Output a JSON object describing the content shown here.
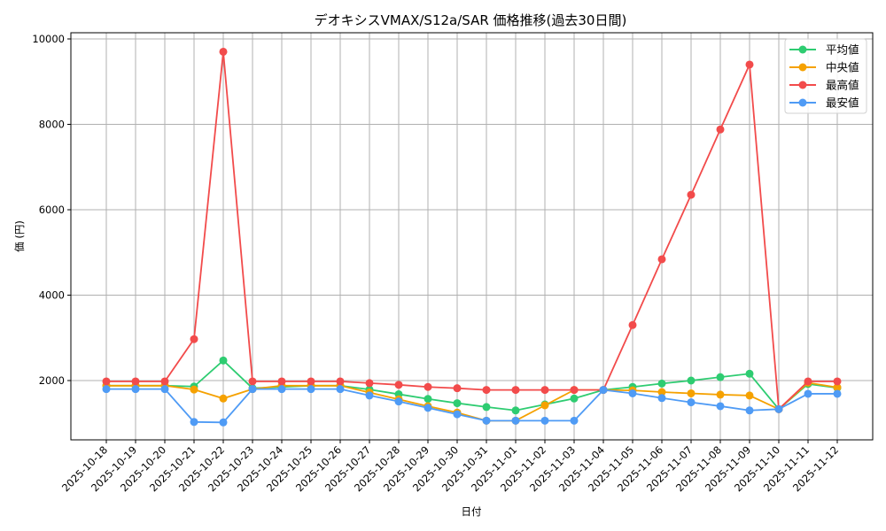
{
  "chart_data": {
    "type": "line",
    "title": "デオキシスVMAX/S12a/SAR 価格推移(過去30日間)",
    "xlabel": "日付",
    "ylabel": "価 (円)",
    "ylim": [
      610,
      10150
    ],
    "yticks": [
      2000,
      4000,
      6000,
      8000,
      10000
    ],
    "grid": true,
    "legend_position": "upper right",
    "categories": [
      "2025-10-18",
      "2025-10-19",
      "2025-10-20",
      "2025-10-21",
      "2025-10-22",
      "2025-10-23",
      "2025-10-24",
      "2025-10-25",
      "2025-10-26",
      "2025-10-27",
      "2025-10-28",
      "2025-10-29",
      "2025-10-30",
      "2025-10-31",
      "2025-11-01",
      "2025-11-02",
      "2025-11-03",
      "2025-11-04",
      "2025-11-05",
      "2025-11-06",
      "2025-11-07",
      "2025-11-08",
      "2025-11-09",
      "2025-11-10",
      "2025-11-11",
      "2025-11-12"
    ],
    "series": [
      {
        "name": "平均値",
        "color": "#2ecc71",
        "values": [
          1880,
          1880,
          1880,
          1860,
          2470,
          1820,
          1850,
          1880,
          1880,
          1790,
          1680,
          1570,
          1470,
          1380,
          1300,
          1440,
          1580,
          1780,
          1850,
          1930,
          2000,
          2080,
          2160,
          1330,
          1920,
          1830
        ]
      },
      {
        "name": "中央値",
        "color": "#f5a100",
        "values": [
          1880,
          1880,
          1880,
          1790,
          1580,
          1800,
          1880,
          1880,
          1880,
          1720,
          1560,
          1400,
          1250,
          1060,
          1060,
          1420,
          1780,
          1780,
          1770,
          1730,
          1700,
          1670,
          1650,
          1330,
          1950,
          1840
        ]
      },
      {
        "name": "最高値",
        "color": "#f24b4b",
        "values": [
          1980,
          1980,
          1980,
          2970,
          9700,
          1980,
          1980,
          1980,
          1980,
          1940,
          1900,
          1850,
          1820,
          1780,
          1780,
          1780,
          1780,
          1780,
          3300,
          4840,
          6350,
          7880,
          9400,
          1330,
          1980,
          1980
        ]
      },
      {
        "name": "最安値",
        "color": "#4f9bf5",
        "values": [
          1800,
          1800,
          1800,
          1030,
          1020,
          1800,
          1800,
          1800,
          1800,
          1650,
          1510,
          1360,
          1210,
          1060,
          1060,
          1060,
          1060,
          1780,
          1700,
          1590,
          1490,
          1400,
          1300,
          1330,
          1690,
          1690
        ]
      }
    ]
  }
}
